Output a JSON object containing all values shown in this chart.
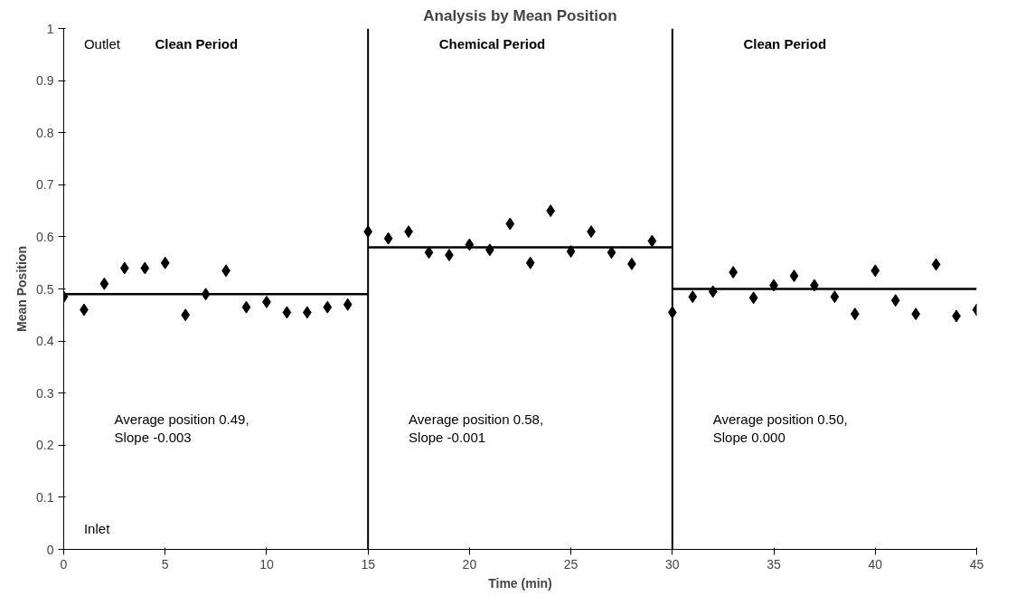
{
  "chart_data": {
    "type": "scatter",
    "title": "Analysis by Mean Position",
    "xlabel": "Time (min)",
    "ylabel": "Mean Position",
    "xlim": [
      0,
      45
    ],
    "ylim": [
      0,
      1
    ],
    "xticks": [
      0,
      5,
      10,
      15,
      20,
      25,
      30,
      35,
      40,
      45
    ],
    "yticks": [
      0,
      0.1,
      0.2,
      0.3,
      0.4,
      0.5,
      0.6,
      0.7,
      0.8,
      0.9,
      1
    ],
    "grid": false,
    "marker": "diamond",
    "x": [
      0,
      1,
      2,
      3,
      4,
      5,
      6,
      7,
      8,
      9,
      10,
      11,
      12,
      13,
      14,
      15,
      16,
      17,
      18,
      19,
      20,
      21,
      22,
      23,
      24,
      25,
      26,
      27,
      28,
      29,
      30,
      31,
      32,
      33,
      34,
      35,
      36,
      37,
      38,
      39,
      40,
      41,
      42,
      43,
      44,
      45
    ],
    "series": [
      {
        "color": "#000000",
        "values": [
          0.485,
          0.46,
          0.51,
          0.54,
          0.54,
          0.55,
          0.45,
          0.49,
          0.535,
          0.465,
          0.475,
          0.455,
          0.455,
          0.465,
          0.47,
          0.61,
          0.597,
          0.61,
          0.57,
          0.565,
          0.585,
          0.575,
          0.625,
          0.55,
          0.65,
          0.572,
          0.61,
          0.57,
          0.548,
          0.592,
          0.455,
          0.485,
          0.495,
          0.532,
          0.483,
          0.507,
          0.525,
          0.507,
          0.485,
          0.452,
          0.535,
          0.478,
          0.452,
          0.547,
          0.448,
          0.46
        ]
      },
      {
        "type": "line",
        "color": "#000000",
        "marker": "none",
        "x": [
          0,
          15
        ],
        "values": [
          0.49,
          0.49
        ]
      },
      {
        "type": "line",
        "color": "#000000",
        "marker": "none",
        "x": [
          15,
          30
        ],
        "values": [
          0.58,
          0.58
        ]
      },
      {
        "type": "line",
        "color": "#000000",
        "marker": "none",
        "x": [
          30,
          45
        ],
        "values": [
          0.5,
          0.5
        ]
      }
    ],
    "ref_lines": [
      {
        "axis": "x",
        "value": 15,
        "color": "#000000"
      },
      {
        "axis": "x",
        "value": 30,
        "color": "#000000"
      }
    ],
    "annotations": [
      "Outlet",
      "Inlet",
      "Clean Period",
      "Chemical Period",
      "Clean Period",
      "Average position 0.49,\nSlope -0.003",
      "Average position 0.58,\nSlope -0.001",
      "Average position 0.50,\nSlope 0.000"
    ]
  }
}
